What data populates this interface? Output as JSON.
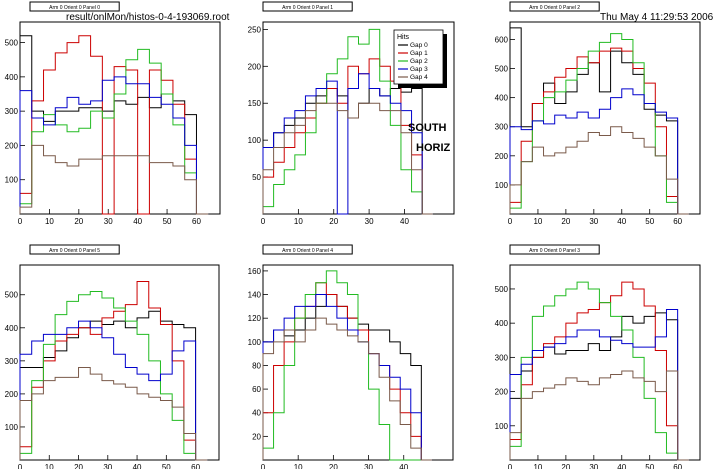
{
  "header": {
    "file_label": "result/onlMon/histos-0-4-193069.root",
    "datetime": "Thu May  4 11:29:53 2006"
  },
  "annotation": {
    "line1": "SOUTH",
    "line2": "HORIZ"
  },
  "legend": {
    "title": "Hits",
    "entries": [
      {
        "name": "Gap 0",
        "color": "#000000"
      },
      {
        "name": "Gap 1",
        "color": "#cc0000"
      },
      {
        "name": "Gap 2",
        "color": "#22bb22"
      },
      {
        "name": "Gap 3",
        "color": "#0000cc"
      },
      {
        "name": "Gap 4",
        "color": "#7a5a4a"
      }
    ]
  },
  "chart_data": [
    {
      "type": "line",
      "title": "Arm 0 Orient 0 Panel 0",
      "xlim": [
        0,
        68
      ],
      "ylim": [
        0,
        560
      ],
      "xticks": [
        0,
        10,
        20,
        30,
        40,
        50,
        60
      ],
      "yticks": [
        100,
        200,
        300,
        400,
        500
      ],
      "x": [
        0,
        4,
        8,
        12,
        16,
        20,
        24,
        28,
        32,
        36,
        40,
        44,
        48,
        52,
        56,
        60
      ],
      "series": [
        {
          "name": "Gap 0",
          "values": [
            520,
            300,
            270,
            300,
            300,
            310,
            310,
            300,
            330,
            320,
            340,
            310,
            350,
            330,
            290,
            0
          ]
        },
        {
          "name": "Gap 1",
          "values": [
            60,
            330,
            420,
            470,
            500,
            520,
            460,
            0,
            430,
            420,
            0,
            420,
            390,
            320,
            160,
            0
          ]
        },
        {
          "name": "Gap 2",
          "values": [
            30,
            240,
            290,
            260,
            240,
            250,
            300,
            280,
            350,
            450,
            480,
            440,
            350,
            260,
            120,
            0
          ]
        },
        {
          "name": "Gap 3",
          "values": [
            360,
            280,
            260,
            310,
            340,
            320,
            330,
            390,
            400,
            380,
            380,
            340,
            320,
            280,
            200,
            0
          ]
        },
        {
          "name": "Gap 4",
          "values": [
            20,
            200,
            170,
            150,
            140,
            160,
            160,
            170,
            170,
            170,
            170,
            150,
            150,
            140,
            100,
            0
          ]
        }
      ]
    },
    {
      "type": "line",
      "title": "Arm 0 Orient 0 Panel 1",
      "xlim": [
        0,
        54
      ],
      "ylim": [
        0,
        260
      ],
      "xticks": [
        0,
        10,
        20,
        30,
        40
      ],
      "yticks": [
        50,
        100,
        150,
        200,
        250
      ],
      "x": [
        0,
        3,
        6,
        9,
        12,
        15,
        18,
        21,
        24,
        27,
        30,
        33,
        36,
        39,
        42,
        45
      ],
      "series": [
        {
          "name": "Gap 0",
          "values": [
            90,
            110,
            120,
            130,
            150,
            160,
            170,
            160,
            130,
            150,
            170,
            160,
            170,
            165,
            170,
            0
          ]
        },
        {
          "name": "Gap 1",
          "values": [
            50,
            70,
            90,
            110,
            130,
            150,
            170,
            150,
            200,
            190,
            210,
            200,
            180,
            120,
            80,
            0
          ]
        },
        {
          "name": "Gap 2",
          "values": [
            10,
            40,
            60,
            80,
            110,
            150,
            190,
            210,
            240,
            230,
            250,
            180,
            120,
            60,
            30,
            0
          ]
        },
        {
          "name": "Gap 3",
          "values": [
            90,
            110,
            130,
            140,
            160,
            170,
            180,
            0,
            170,
            190,
            170,
            160,
            150,
            140,
            110,
            0
          ]
        },
        {
          "name": "Gap 4",
          "values": [
            60,
            90,
            110,
            120,
            140,
            150,
            150,
            140,
            130,
            150,
            150,
            140,
            140,
            110,
            60,
            0
          ]
        }
      ]
    },
    {
      "type": "line",
      "title": "Arm 0 Orient 0 Panel 2",
      "xlim": [
        0,
        68
      ],
      "ylim": [
        0,
        660
      ],
      "xticks": [
        0,
        10,
        20,
        30,
        40,
        50,
        60
      ],
      "yticks": [
        100,
        200,
        300,
        400,
        500,
        600
      ],
      "x": [
        0,
        4,
        8,
        12,
        16,
        20,
        24,
        28,
        32,
        36,
        40,
        44,
        48,
        52,
        56,
        60
      ],
      "series": [
        {
          "name": "Gap 0",
          "values": [
            640,
            300,
            380,
            450,
            380,
            420,
            480,
            520,
            420,
            560,
            520,
            480,
            360,
            340,
            320,
            0
          ]
        },
        {
          "name": "Gap 1",
          "values": [
            40,
            250,
            380,
            420,
            470,
            500,
            540,
            520,
            560,
            570,
            560,
            500,
            450,
            300,
            60,
            0
          ]
        },
        {
          "name": "Gap 2",
          "values": [
            20,
            180,
            320,
            400,
            420,
            460,
            500,
            560,
            590,
            620,
            600,
            520,
            380,
            200,
            40,
            0
          ]
        },
        {
          "name": "Gap 3",
          "values": [
            300,
            290,
            320,
            310,
            340,
            330,
            350,
            330,
            360,
            400,
            430,
            410,
            380,
            350,
            330,
            0
          ]
        },
        {
          "name": "Gap 4",
          "values": [
            100,
            180,
            230,
            200,
            210,
            230,
            250,
            280,
            270,
            300,
            280,
            260,
            230,
            200,
            120,
            0
          ]
        }
      ]
    },
    {
      "type": "line",
      "title": "Arm 0 Orient 0 Panel 5",
      "xlim": [
        0,
        68
      ],
      "ylim": [
        0,
        590
      ],
      "xticks": [
        0,
        10,
        20,
        30,
        40,
        50,
        60
      ],
      "yticks": [
        100,
        200,
        300,
        400,
        500
      ],
      "x": [
        0,
        4,
        8,
        12,
        16,
        20,
        24,
        28,
        32,
        36,
        40,
        44,
        48,
        52,
        56,
        60
      ],
      "series": [
        {
          "name": "Gap 0",
          "values": [
            280,
            280,
            310,
            330,
            370,
            400,
            420,
            410,
            420,
            400,
            430,
            450,
            420,
            410,
            400,
            0
          ]
        },
        {
          "name": "Gap 1",
          "values": [
            40,
            220,
            300,
            360,
            380,
            400,
            380,
            430,
            450,
            470,
            540,
            460,
            410,
            300,
            60,
            0
          ]
        },
        {
          "name": "Gap 2",
          "values": [
            20,
            240,
            350,
            440,
            480,
            500,
            510,
            490,
            460,
            420,
            380,
            300,
            200,
            120,
            20,
            0
          ]
        },
        {
          "name": "Gap 3",
          "values": [
            320,
            360,
            380,
            380,
            400,
            420,
            400,
            370,
            320,
            280,
            260,
            240,
            260,
            330,
            360,
            0
          ]
        },
        {
          "name": "Gap 4",
          "values": [
            180,
            200,
            240,
            250,
            250,
            280,
            260,
            240,
            230,
            220,
            200,
            190,
            180,
            160,
            80,
            0
          ]
        }
      ]
    },
    {
      "type": "line",
      "title": "Arm 0 Orient 0 Panel 4",
      "xlim": [
        0,
        54
      ],
      "ylim": [
        0,
        165
      ],
      "xticks": [
        0,
        10,
        20,
        30,
        40
      ],
      "yticks": [
        20,
        40,
        60,
        80,
        100,
        120,
        140,
        160
      ],
      "x": [
        0,
        3,
        6,
        9,
        12,
        15,
        18,
        21,
        24,
        27,
        30,
        33,
        36,
        39,
        42,
        45
      ],
      "series": [
        {
          "name": "Gap 0",
          "values": [
            100,
            110,
            105,
            110,
            120,
            130,
            140,
            130,
            120,
            115,
            110,
            110,
            100,
            90,
            80,
            0
          ]
        },
        {
          "name": "Gap 1",
          "values": [
            40,
            80,
            100,
            120,
            130,
            150,
            140,
            130,
            120,
            110,
            90,
            80,
            60,
            40,
            20,
            0
          ]
        },
        {
          "name": "Gap 2",
          "values": [
            10,
            40,
            80,
            120,
            140,
            150,
            160,
            150,
            140,
            100,
            60,
            30,
            0,
            0,
            0,
            0
          ]
        },
        {
          "name": "Gap 3",
          "values": [
            100,
            110,
            120,
            130,
            130,
            140,
            130,
            120,
            110,
            100,
            90,
            80,
            70,
            60,
            40,
            0
          ]
        },
        {
          "name": "Gap 4",
          "values": [
            90,
            100,
            110,
            100,
            110,
            120,
            115,
            110,
            105,
            100,
            90,
            70,
            50,
            30,
            10,
            0
          ]
        }
      ]
    },
    {
      "type": "line",
      "title": "Arm 0 Orient 0 Panel 3",
      "xlim": [
        0,
        68
      ],
      "ylim": [
        0,
        570
      ],
      "xticks": [
        0,
        10,
        20,
        30,
        40,
        50,
        60
      ],
      "yticks": [
        100,
        200,
        300,
        400,
        500
      ],
      "x": [
        0,
        4,
        8,
        12,
        16,
        20,
        24,
        28,
        32,
        36,
        40,
        44,
        48,
        52,
        56,
        60
      ],
      "series": [
        {
          "name": "Gap 0",
          "values": [
            180,
            260,
            300,
            330,
            310,
            320,
            320,
            340,
            320,
            360,
            420,
            400,
            420,
            430,
            410,
            0
          ]
        },
        {
          "name": "Gap 1",
          "values": [
            60,
            220,
            300,
            340,
            360,
            400,
            430,
            440,
            460,
            480,
            520,
            500,
            450,
            320,
            100,
            0
          ]
        },
        {
          "name": "Gap 2",
          "values": [
            40,
            300,
            420,
            450,
            480,
            500,
            520,
            500,
            460,
            420,
            380,
            300,
            180,
            80,
            20,
            0
          ]
        },
        {
          "name": "Gap 3",
          "values": [
            250,
            280,
            320,
            330,
            340,
            360,
            380,
            380,
            360,
            350,
            340,
            330,
            330,
            360,
            440,
            0
          ]
        },
        {
          "name": "Gap 4",
          "values": [
            80,
            180,
            200,
            210,
            220,
            240,
            230,
            220,
            240,
            250,
            260,
            240,
            230,
            200,
            260,
            0
          ]
        }
      ]
    }
  ]
}
